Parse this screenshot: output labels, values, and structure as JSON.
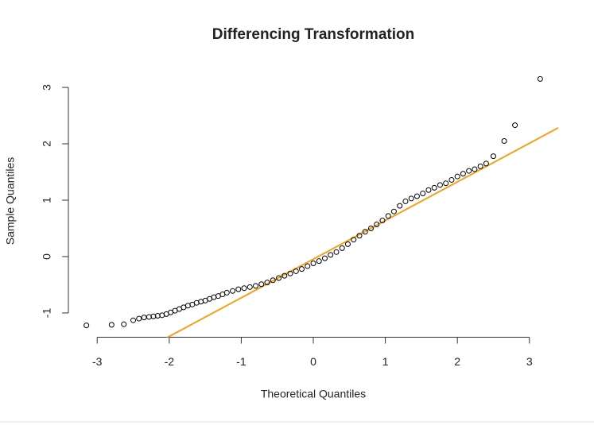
{
  "chart_data": {
    "type": "scatter",
    "title": "Differencing Transformation",
    "x_label": "Theoretical Quantiles",
    "y_label": "Sample Quantiles",
    "x": [
      -3.15,
      -2.8,
      -2.63,
      -2.5,
      -2.42,
      -2.35,
      -2.28,
      -2.22,
      -2.16,
      -2.1,
      -2.04,
      -1.98,
      -1.92,
      -1.86,
      -1.8,
      -1.74,
      -1.68,
      -1.62,
      -1.56,
      -1.5,
      -1.44,
      -1.38,
      -1.32,
      -1.26,
      -1.2,
      -1.12,
      -1.04,
      -0.96,
      -0.88,
      -0.8,
      -0.72,
      -0.64,
      -0.56,
      -0.48,
      -0.4,
      -0.32,
      -0.24,
      -0.16,
      -0.08,
      0,
      0.08,
      0.16,
      0.24,
      0.32,
      0.4,
      0.48,
      0.56,
      0.64,
      0.72,
      0.8,
      0.88,
      0.96,
      1.04,
      1.12,
      1.2,
      1.28,
      1.36,
      1.44,
      1.52,
      1.6,
      1.68,
      1.76,
      1.84,
      1.92,
      2.0,
      2.08,
      2.16,
      2.24,
      2.32,
      2.4,
      2.5,
      2.65,
      2.8,
      3.15
    ],
    "y": [
      -1.22,
      -1.21,
      -1.2,
      -1.13,
      -1.1,
      -1.08,
      -1.07,
      -1.06,
      -1.05,
      -1.04,
      -1.02,
      -0.99,
      -0.96,
      -0.93,
      -0.9,
      -0.87,
      -0.85,
      -0.82,
      -0.8,
      -0.78,
      -0.75,
      -0.72,
      -0.7,
      -0.67,
      -0.64,
      -0.61,
      -0.58,
      -0.56,
      -0.54,
      -0.52,
      -0.49,
      -0.46,
      -0.42,
      -0.38,
      -0.34,
      -0.3,
      -0.26,
      -0.22,
      -0.17,
      -0.12,
      -0.08,
      -0.03,
      0.03,
      0.08,
      0.15,
      0.22,
      0.3,
      0.37,
      0.44,
      0.5,
      0.57,
      0.64,
      0.72,
      0.8,
      0.9,
      0.98,
      1.03,
      1.07,
      1.12,
      1.18,
      1.22,
      1.27,
      1.3,
      1.36,
      1.42,
      1.47,
      1.52,
      1.55,
      1.6,
      1.65,
      1.78,
      2.05,
      2.33,
      3.15
    ],
    "color": "#000000",
    "reference_line": {
      "color": "#f5a21b",
      "intercept": -0.046,
      "slope": 0.685
    },
    "xlim": [
      -3.4,
      3.4
    ],
    "ylim": [
      -1.43,
      3.33
    ],
    "xticks": [
      -3,
      -2,
      -1,
      0,
      1,
      2,
      3
    ],
    "yticks": [
      -1,
      0,
      1,
      2,
      3
    ]
  }
}
